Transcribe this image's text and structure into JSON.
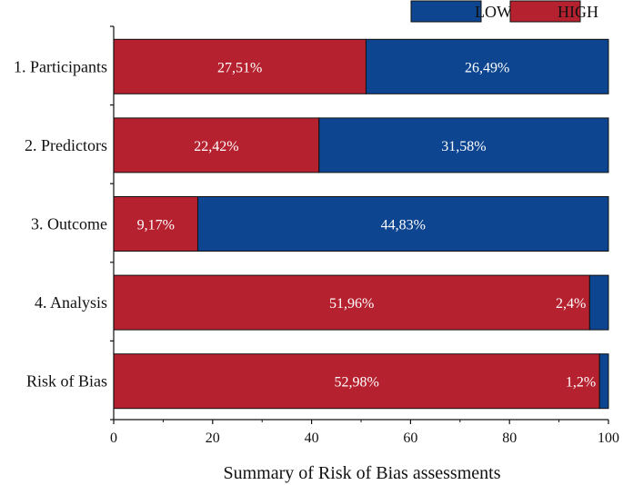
{
  "chart_data": {
    "type": "bar",
    "orientation": "horizontal",
    "stacked": true,
    "title": "",
    "xlabel": "Summary of Risk of Bias assessments",
    "ylabel": "",
    "xlim": [
      0,
      100
    ],
    "xticks": [
      "0",
      "20",
      "40",
      "60",
      "80",
      "100"
    ],
    "categories": [
      "1. Participants",
      "2. Predictors",
      "3. Outcome",
      "4. Analysis",
      "Risk of Bias"
    ],
    "series": [
      {
        "name": "HIGH",
        "color": "#b5212f",
        "values": [
          51,
          41.5,
          17,
          96.2,
          98.2
        ],
        "labels": [
          "27,51%",
          "22,42%",
          "9,17%",
          "51,96%",
          "52,98%"
        ]
      },
      {
        "name": "LOW",
        "color": "#0d4590",
        "values": [
          49,
          58.5,
          83,
          3.8,
          1.8
        ],
        "labels": [
          "26,49%",
          "31,58%",
          "44,83%",
          "2,4%",
          "1,2%"
        ]
      }
    ],
    "legend": {
      "position": "top-right",
      "order": [
        "LOW",
        "HIGH"
      ]
    },
    "grid": false
  }
}
